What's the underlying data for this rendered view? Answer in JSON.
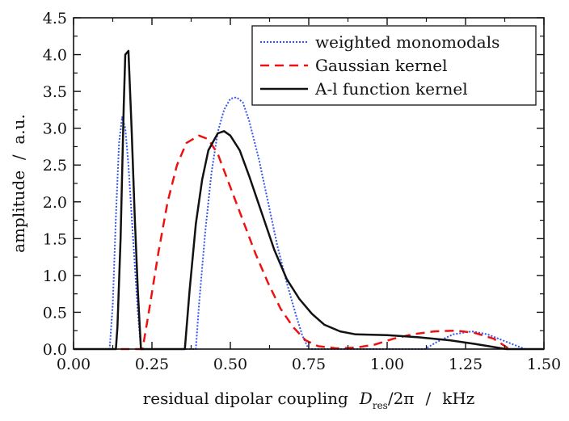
{
  "chart_data": {
    "type": "line",
    "title": "",
    "xlabel": {
      "prefix": "residual dipolar coupling",
      "symbol": "D",
      "subscript": "res",
      "suffix": "/2π",
      "unit_sep": "/",
      "unit": "kHz"
    },
    "ylabel": "amplitude  /  a.u.",
    "xlim": [
      0,
      1.5
    ],
    "ylim": [
      0,
      4.5
    ],
    "xticks": [
      "0.00",
      "0.25",
      "0.50",
      "0.75",
      "1.00",
      "1.25",
      "1.50"
    ],
    "yticks": [
      "0.0",
      "0.5",
      "1.0",
      "1.5",
      "2.0",
      "2.5",
      "3.0",
      "3.5",
      "4.0",
      "4.5"
    ],
    "grid": false,
    "legend_position": "top-right",
    "series": [
      {
        "name": "weighted monomodals",
        "color": "#3355ee",
        "style": "dotted",
        "points": [
          [
            0,
            0
          ],
          [
            0.115,
            0
          ],
          [
            0.125,
            0.6
          ],
          [
            0.135,
            1.8
          ],
          [
            0.145,
            2.8
          ],
          [
            0.155,
            3.15
          ],
          [
            0.165,
            3.0
          ],
          [
            0.175,
            2.5
          ],
          [
            0.19,
            1.5
          ],
          [
            0.205,
            0.5
          ],
          [
            0.215,
            0
          ],
          [
            0.39,
            0
          ],
          [
            0.4,
            0.6
          ],
          [
            0.42,
            1.6
          ],
          [
            0.44,
            2.4
          ],
          [
            0.46,
            2.95
          ],
          [
            0.48,
            3.25
          ],
          [
            0.5,
            3.4
          ],
          [
            0.52,
            3.42
          ],
          [
            0.54,
            3.35
          ],
          [
            0.56,
            3.1
          ],
          [
            0.59,
            2.6
          ],
          [
            0.62,
            2.0
          ],
          [
            0.65,
            1.4
          ],
          [
            0.68,
            0.9
          ],
          [
            0.71,
            0.45
          ],
          [
            0.73,
            0.18
          ],
          [
            0.75,
            0
          ],
          [
            1.12,
            0
          ],
          [
            1.16,
            0.1
          ],
          [
            1.21,
            0.2
          ],
          [
            1.27,
            0.24
          ],
          [
            1.32,
            0.2
          ],
          [
            1.38,
            0.1
          ],
          [
            1.44,
            0
          ],
          [
            1.5,
            0
          ]
        ]
      },
      {
        "name": "Gaussian kernel",
        "color": "#ee1111",
        "style": "dashed",
        "points": [
          [
            0.15,
            0
          ],
          [
            0.22,
            0
          ],
          [
            0.24,
            0.5
          ],
          [
            0.27,
            1.3
          ],
          [
            0.3,
            2.0
          ],
          [
            0.33,
            2.5
          ],
          [
            0.36,
            2.8
          ],
          [
            0.4,
            2.9
          ],
          [
            0.43,
            2.85
          ],
          [
            0.46,
            2.65
          ],
          [
            0.5,
            2.2
          ],
          [
            0.54,
            1.75
          ],
          [
            0.58,
            1.3
          ],
          [
            0.62,
            0.9
          ],
          [
            0.66,
            0.55
          ],
          [
            0.7,
            0.3
          ],
          [
            0.74,
            0.12
          ],
          [
            0.78,
            0.04
          ],
          [
            0.84,
            0.01
          ],
          [
            0.9,
            0.02
          ],
          [
            0.96,
            0.06
          ],
          [
            1.02,
            0.14
          ],
          [
            1.08,
            0.2
          ],
          [
            1.15,
            0.24
          ],
          [
            1.22,
            0.25
          ],
          [
            1.28,
            0.22
          ],
          [
            1.34,
            0.14
          ],
          [
            1.39,
            0
          ]
        ]
      },
      {
        "name": "A-l function kernel",
        "color": "#111111",
        "style": "solid",
        "points": [
          [
            0,
            0
          ],
          [
            0.135,
            0
          ],
          [
            0.14,
            0.3
          ],
          [
            0.15,
            1.5
          ],
          [
            0.16,
            3.3
          ],
          [
            0.165,
            4.0
          ],
          [
            0.175,
            4.05
          ],
          [
            0.185,
            3.0
          ],
          [
            0.195,
            1.8
          ],
          [
            0.205,
            0.8
          ],
          [
            0.215,
            0
          ],
          [
            0.355,
            0
          ],
          [
            0.37,
            0.8
          ],
          [
            0.39,
            1.7
          ],
          [
            0.41,
            2.3
          ],
          [
            0.43,
            2.7
          ],
          [
            0.46,
            2.93
          ],
          [
            0.48,
            2.96
          ],
          [
            0.5,
            2.9
          ],
          [
            0.53,
            2.7
          ],
          [
            0.56,
            2.35
          ],
          [
            0.6,
            1.85
          ],
          [
            0.64,
            1.35
          ],
          [
            0.68,
            0.95
          ],
          [
            0.72,
            0.68
          ],
          [
            0.76,
            0.48
          ],
          [
            0.8,
            0.33
          ],
          [
            0.85,
            0.24
          ],
          [
            0.9,
            0.2
          ],
          [
            1.0,
            0.19
          ],
          [
            1.1,
            0.16
          ],
          [
            1.2,
            0.12
          ],
          [
            1.28,
            0.07
          ],
          [
            1.38,
            0
          ],
          [
            1.5,
            0
          ]
        ]
      }
    ]
  }
}
